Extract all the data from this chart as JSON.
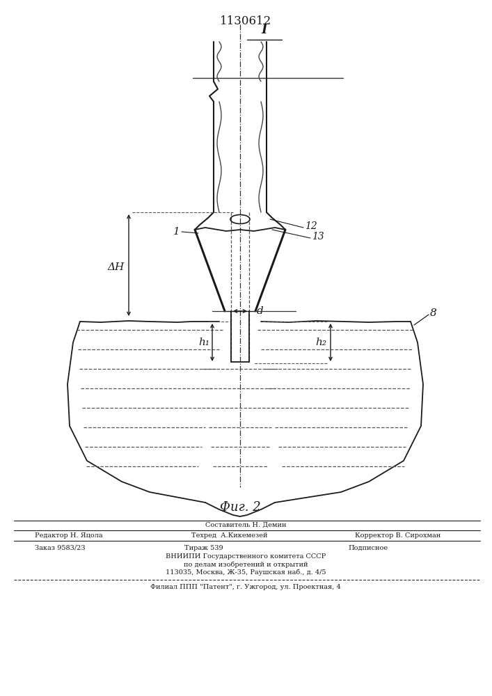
{
  "patent_number": "1130612",
  "fig_label": "Фиг. 2",
  "label_I": "I",
  "label_1": "1",
  "label_8": "8",
  "label_12": "12",
  "label_13": "13",
  "label_d": "d",
  "label_deltaH": "ΔH",
  "label_h1": "h₁",
  "label_h2": "h₂",
  "footer_line1": "Составитель Н. Демин",
  "footer_line2_left": "Редактор Н. Яцола",
  "footer_line2_mid": "Техред  А.Кикемезей",
  "footer_line2_right": "Корректор В. Сирохман",
  "footer_line3_left": "Заказ 9583/23",
  "footer_line3_mid": "Тираж 539",
  "footer_line3_right": "Подписное",
  "footer_line4": "ВНИИПИ Государственного комитета СССР",
  "footer_line5": "по делам изобретений и открытий",
  "footer_line6": "113035, Москва, Ж-35, Раушская наб., д. 4/5",
  "footer_line7": "Филиал ППП \"Патент\", г. Ужгород, ул. Проектная, 4",
  "bg_color": "#ffffff"
}
